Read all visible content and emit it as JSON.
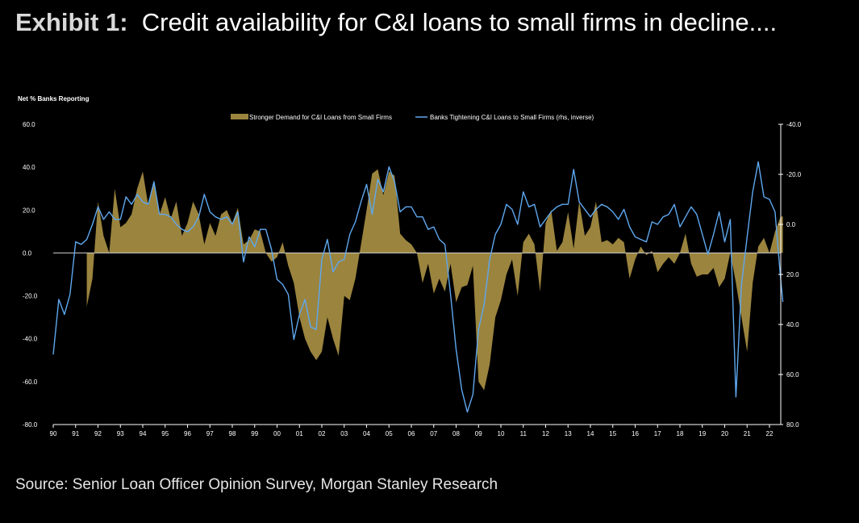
{
  "title": {
    "exhibit": "Exhibit 1:",
    "text": "Credit availability for C&I loans to small firms in decline...."
  },
  "source": "Source: Senior Loan Officer Opinion Survey, Morgan Stanley Research",
  "colors": {
    "area": "#9b843e",
    "line": "#5fa8ef",
    "axis": "#ffffff",
    "zero_line": "#d0d0d0"
  },
  "chart_data": {
    "type": "area",
    "ylabel_left": "Net % Banks Reporting",
    "left_axis": {
      "range": [
        -80,
        60
      ],
      "ticks": [
        "60.0",
        "40.0",
        "20.0",
        "0.0",
        "-20.0",
        "-40.0",
        "-60.0",
        "-80.0"
      ]
    },
    "right_axis": {
      "range": [
        -40,
        80
      ],
      "inverted": true,
      "ticks": [
        "-40.0",
        "-20.0",
        "0.0",
        "20.0",
        "40.0",
        "60.0",
        "80.0"
      ]
    },
    "x_range": [
      1990,
      2022.6
    ],
    "x_ticks": [
      "90",
      "91",
      "92",
      "93",
      "94",
      "95",
      "96",
      "97",
      "98",
      "99",
      "00",
      "01",
      "02",
      "03",
      "04",
      "05",
      "06",
      "07",
      "08",
      "09",
      "10",
      "11",
      "12",
      "13",
      "14",
      "15",
      "16",
      "17",
      "18",
      "19",
      "20",
      "21",
      "22"
    ],
    "series": [
      {
        "name": "Stronger Demand for C&I Loans from Small Firms",
        "type": "area",
        "axis": "left",
        "points": [
          [
            1991.5,
            -25
          ],
          [
            1991.75,
            -12
          ],
          [
            1992.0,
            24
          ],
          [
            1992.25,
            8
          ],
          [
            1992.5,
            0
          ],
          [
            1992.75,
            30
          ],
          [
            1993.0,
            12
          ],
          [
            1993.25,
            14
          ],
          [
            1993.5,
            18
          ],
          [
            1993.75,
            30
          ],
          [
            1994.0,
            38
          ],
          [
            1994.25,
            22
          ],
          [
            1994.5,
            34
          ],
          [
            1994.75,
            18
          ],
          [
            1995.0,
            26
          ],
          [
            1995.25,
            16
          ],
          [
            1995.5,
            24
          ],
          [
            1995.75,
            8
          ],
          [
            1996.0,
            14
          ],
          [
            1996.25,
            24
          ],
          [
            1996.5,
            18
          ],
          [
            1996.75,
            4
          ],
          [
            1997.0,
            14
          ],
          [
            1997.25,
            8
          ],
          [
            1997.5,
            18
          ],
          [
            1997.75,
            20
          ],
          [
            1998.0,
            14
          ],
          [
            1998.25,
            21
          ],
          [
            1998.5,
            4
          ],
          [
            1998.75,
            6
          ],
          [
            1999.0,
            11
          ],
          [
            1999.25,
            10
          ],
          [
            1999.5,
            0
          ],
          [
            1999.75,
            -4
          ],
          [
            2000.0,
            -2
          ],
          [
            2000.25,
            5
          ],
          [
            2000.5,
            -6
          ],
          [
            2000.75,
            -14
          ],
          [
            2001.0,
            -30
          ],
          [
            2001.25,
            -40
          ],
          [
            2001.5,
            -46
          ],
          [
            2001.75,
            -50
          ],
          [
            2002.0,
            -46
          ],
          [
            2002.25,
            -30
          ],
          [
            2002.5,
            -40
          ],
          [
            2002.75,
            -48
          ],
          [
            2003.0,
            -20
          ],
          [
            2003.25,
            -22
          ],
          [
            2003.5,
            -12
          ],
          [
            2003.75,
            4
          ],
          [
            2004.0,
            20
          ],
          [
            2004.25,
            37
          ],
          [
            2004.5,
            39
          ],
          [
            2004.75,
            27
          ],
          [
            2005.0,
            38
          ],
          [
            2005.25,
            36
          ],
          [
            2005.5,
            9
          ],
          [
            2005.75,
            6
          ],
          [
            2006.0,
            4
          ],
          [
            2006.25,
            0
          ],
          [
            2006.5,
            -14
          ],
          [
            2006.75,
            -5
          ],
          [
            2007.0,
            -19
          ],
          [
            2007.25,
            -12
          ],
          [
            2007.5,
            -18
          ],
          [
            2007.75,
            -5
          ],
          [
            2008.0,
            -23
          ],
          [
            2008.25,
            -16
          ],
          [
            2008.5,
            -15
          ],
          [
            2008.75,
            -6
          ],
          [
            2009.0,
            -60
          ],
          [
            2009.25,
            -64
          ],
          [
            2009.5,
            -52
          ],
          [
            2009.75,
            -30
          ],
          [
            2010.0,
            -22
          ],
          [
            2010.25,
            -10
          ],
          [
            2010.5,
            -3
          ],
          [
            2010.75,
            -20
          ],
          [
            2011.0,
            5
          ],
          [
            2011.25,
            9
          ],
          [
            2011.5,
            4
          ],
          [
            2011.75,
            -18
          ],
          [
            2012.0,
            14
          ],
          [
            2012.25,
            20
          ],
          [
            2012.5,
            1
          ],
          [
            2012.75,
            5
          ],
          [
            2013.0,
            19
          ],
          [
            2013.25,
            2
          ],
          [
            2013.5,
            24
          ],
          [
            2013.75,
            8
          ],
          [
            2014.0,
            12
          ],
          [
            2014.25,
            24
          ],
          [
            2014.5,
            5
          ],
          [
            2014.75,
            6
          ],
          [
            2015.0,
            4
          ],
          [
            2015.25,
            7
          ],
          [
            2015.5,
            5
          ],
          [
            2015.75,
            -12
          ],
          [
            2016.0,
            -3
          ],
          [
            2016.25,
            3
          ],
          [
            2016.5,
            -1
          ],
          [
            2016.75,
            1
          ],
          [
            2017.0,
            -9
          ],
          [
            2017.25,
            -5
          ],
          [
            2017.5,
            -2
          ],
          [
            2017.75,
            -5
          ],
          [
            2018.0,
            0
          ],
          [
            2018.25,
            9
          ],
          [
            2018.5,
            -5
          ],
          [
            2018.75,
            -11
          ],
          [
            2019.0,
            -10
          ],
          [
            2019.25,
            -10
          ],
          [
            2019.5,
            -7
          ],
          [
            2019.75,
            -16
          ],
          [
            2020.0,
            -12
          ],
          [
            2020.25,
            0
          ],
          [
            2020.5,
            -14
          ],
          [
            2020.75,
            -30
          ],
          [
            2021.0,
            -46
          ],
          [
            2021.25,
            -14
          ],
          [
            2021.5,
            3
          ],
          [
            2021.75,
            7
          ],
          [
            2022.0,
            0
          ],
          [
            2022.25,
            10
          ],
          [
            2022.5,
            17
          ],
          [
            2022.6,
            17
          ]
        ]
      },
      {
        "name": "Banks Tightening C&I Loans to Small Firms (rhs, inverse)",
        "type": "line",
        "axis": "right",
        "points": [
          [
            1990.0,
            52
          ],
          [
            1990.25,
            30
          ],
          [
            1990.5,
            36
          ],
          [
            1990.75,
            28
          ],
          [
            1991.0,
            7
          ],
          [
            1991.25,
            8
          ],
          [
            1991.5,
            6
          ],
          [
            1991.75,
            0
          ],
          [
            1992.0,
            -7
          ],
          [
            1992.25,
            -2
          ],
          [
            1992.5,
            -5
          ],
          [
            1992.75,
            -2
          ],
          [
            1993.0,
            -2
          ],
          [
            1993.25,
            -11
          ],
          [
            1993.5,
            -8
          ],
          [
            1993.75,
            -12
          ],
          [
            1994.0,
            -9
          ],
          [
            1994.25,
            -8
          ],
          [
            1994.5,
            -17
          ],
          [
            1994.75,
            -4
          ],
          [
            1995.0,
            -4
          ],
          [
            1995.25,
            -3
          ],
          [
            1995.5,
            0
          ],
          [
            1995.75,
            2
          ],
          [
            1996.0,
            3
          ],
          [
            1996.25,
            1
          ],
          [
            1996.5,
            -3
          ],
          [
            1996.75,
            -12
          ],
          [
            1997.0,
            -5
          ],
          [
            1997.25,
            -3
          ],
          [
            1997.5,
            -2
          ],
          [
            1997.75,
            -3
          ],
          [
            1998.0,
            0
          ],
          [
            1998.25,
            -5
          ],
          [
            1998.5,
            15
          ],
          [
            1998.75,
            5
          ],
          [
            1999.0,
            9
          ],
          [
            1999.25,
            2
          ],
          [
            1999.5,
            2
          ],
          [
            1999.75,
            10
          ],
          [
            2000.0,
            22
          ],
          [
            2000.25,
            24
          ],
          [
            2000.5,
            28
          ],
          [
            2000.75,
            46
          ],
          [
            2001.0,
            36
          ],
          [
            2001.25,
            30
          ],
          [
            2001.5,
            41
          ],
          [
            2001.75,
            42
          ],
          [
            2002.0,
            14
          ],
          [
            2002.25,
            6
          ],
          [
            2002.5,
            19
          ],
          [
            2002.75,
            15
          ],
          [
            2003.0,
            14
          ],
          [
            2003.25,
            4
          ],
          [
            2003.5,
            -1
          ],
          [
            2003.75,
            -9
          ],
          [
            2004.0,
            -16
          ],
          [
            2004.25,
            -4
          ],
          [
            2004.5,
            -18
          ],
          [
            2004.75,
            -13
          ],
          [
            2005.0,
            -23
          ],
          [
            2005.25,
            -17
          ],
          [
            2005.5,
            -5
          ],
          [
            2005.75,
            -7
          ],
          [
            2006.0,
            -7
          ],
          [
            2006.25,
            -3
          ],
          [
            2006.5,
            -3
          ],
          [
            2006.75,
            2
          ],
          [
            2007.0,
            1
          ],
          [
            2007.25,
            6
          ],
          [
            2007.5,
            8
          ],
          [
            2007.75,
            28
          ],
          [
            2008.0,
            50
          ],
          [
            2008.25,
            66
          ],
          [
            2008.5,
            75
          ],
          [
            2008.75,
            68
          ],
          [
            2009.0,
            42
          ],
          [
            2009.25,
            32
          ],
          [
            2009.5,
            14
          ],
          [
            2009.75,
            4
          ],
          [
            2010.0,
            0
          ],
          [
            2010.25,
            -8
          ],
          [
            2010.5,
            -6
          ],
          [
            2010.75,
            0
          ],
          [
            2011.0,
            -13
          ],
          [
            2011.25,
            -7
          ],
          [
            2011.5,
            -8
          ],
          [
            2011.75,
            1
          ],
          [
            2012.0,
            -2
          ],
          [
            2012.25,
            -5
          ],
          [
            2012.5,
            -7
          ],
          [
            2012.75,
            -8
          ],
          [
            2013.0,
            -8
          ],
          [
            2013.25,
            -22
          ],
          [
            2013.5,
            -9
          ],
          [
            2013.75,
            -6
          ],
          [
            2014.0,
            -3
          ],
          [
            2014.25,
            -6
          ],
          [
            2014.5,
            -8
          ],
          [
            2014.75,
            -7
          ],
          [
            2015.0,
            -5
          ],
          [
            2015.25,
            -2
          ],
          [
            2015.5,
            -6
          ],
          [
            2015.75,
            1
          ],
          [
            2016.0,
            5
          ],
          [
            2016.25,
            6
          ],
          [
            2016.5,
            7
          ],
          [
            2016.75,
            -1
          ],
          [
            2017.0,
            0
          ],
          [
            2017.25,
            -3
          ],
          [
            2017.5,
            -4
          ],
          [
            2017.75,
            -8
          ],
          [
            2018.0,
            1
          ],
          [
            2018.25,
            -3
          ],
          [
            2018.5,
            -7
          ],
          [
            2018.75,
            -4
          ],
          [
            2019.0,
            4
          ],
          [
            2019.25,
            12
          ],
          [
            2019.5,
            4
          ],
          [
            2019.75,
            -5
          ],
          [
            2020.0,
            7
          ],
          [
            2020.25,
            -2
          ],
          [
            2020.5,
            69
          ],
          [
            2020.75,
            24
          ],
          [
            2021.0,
            5
          ],
          [
            2021.25,
            -13
          ],
          [
            2021.5,
            -25
          ],
          [
            2021.75,
            -11
          ],
          [
            2022.0,
            -10
          ],
          [
            2022.25,
            -5
          ],
          [
            2022.5,
            22
          ],
          [
            2022.6,
            31
          ]
        ]
      }
    ]
  }
}
